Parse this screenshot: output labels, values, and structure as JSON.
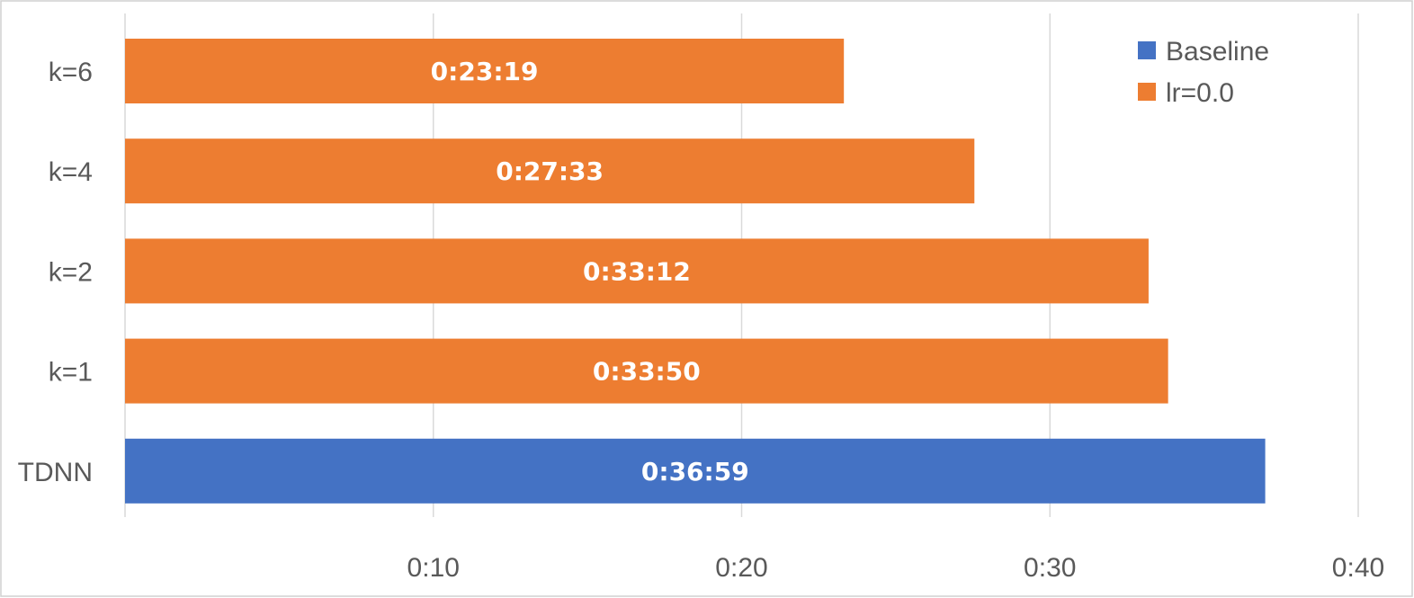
{
  "chart_data": {
    "type": "bar",
    "orientation": "horizontal",
    "title": "",
    "xlabel": "",
    "ylabel": "",
    "xlim_minutes": [
      0,
      40
    ],
    "x_ticks": [
      {
        "value": 10,
        "label": "0:10"
      },
      {
        "value": 20,
        "label": "0:20"
      },
      {
        "value": 30,
        "label": "0:30"
      },
      {
        "value": 40,
        "label": "0:40"
      }
    ],
    "grid": "vertical",
    "legend_position": "top-right",
    "legend": [
      {
        "label": "Baseline",
        "color": "#4472c4"
      },
      {
        "label": "lr=0.0",
        "color": "#ed7d31"
      }
    ],
    "bars": [
      {
        "category": "k=6",
        "value_minutes": 23.3167,
        "label": "0:23:19",
        "series": "lr=0.0",
        "color": "#ed7d31"
      },
      {
        "category": "k=4",
        "value_minutes": 27.55,
        "label": "0:27:33",
        "series": "lr=0.0",
        "color": "#ed7d31"
      },
      {
        "category": "k=2",
        "value_minutes": 33.2,
        "label": "0:33:12",
        "series": "lr=0.0",
        "color": "#ed7d31"
      },
      {
        "category": "k=1",
        "value_minutes": 33.8333,
        "label": "0:33:50",
        "series": "lr=0.0",
        "color": "#ed7d31"
      },
      {
        "category": "TDNN",
        "value_minutes": 36.9833,
        "label": "0:36:59",
        "series": "Baseline",
        "color": "#4472c4"
      }
    ]
  }
}
